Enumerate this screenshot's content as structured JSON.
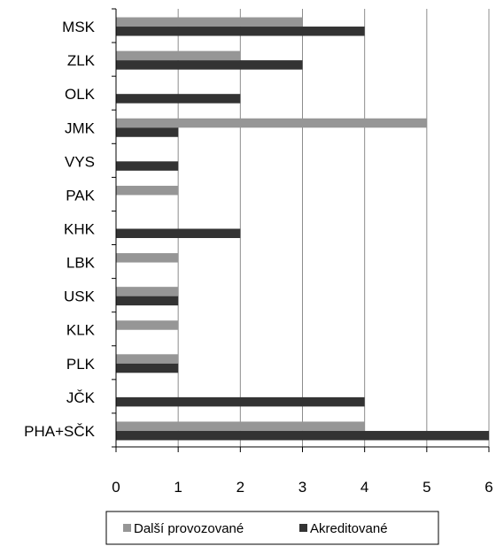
{
  "chart_data": {
    "type": "bar",
    "orientation": "horizontal",
    "categories": [
      "MSK",
      "ZLK",
      "OLK",
      "JMK",
      "VYS",
      "PAK",
      "KHK",
      "LBK",
      "USK",
      "KLK",
      "PLK",
      "JČK",
      "PHA+SČK"
    ],
    "series": [
      {
        "name": "Další provozované",
        "color": "#969696",
        "values": [
          3,
          2,
          0,
          5,
          0,
          1,
          0,
          1,
          1,
          1,
          1,
          0,
          4
        ]
      },
      {
        "name": "Akreditované",
        "color": "#333333",
        "values": [
          4,
          3,
          2,
          1,
          1,
          0,
          2,
          0,
          1,
          0,
          1,
          4,
          6
        ]
      }
    ],
    "xlim": [
      0,
      6
    ],
    "xticks": [
      "0",
      "1",
      "2",
      "3",
      "4",
      "5",
      "6"
    ],
    "title": "",
    "xlabel": "",
    "ylabel": "",
    "grid": "vertical",
    "legend": "bottom"
  }
}
